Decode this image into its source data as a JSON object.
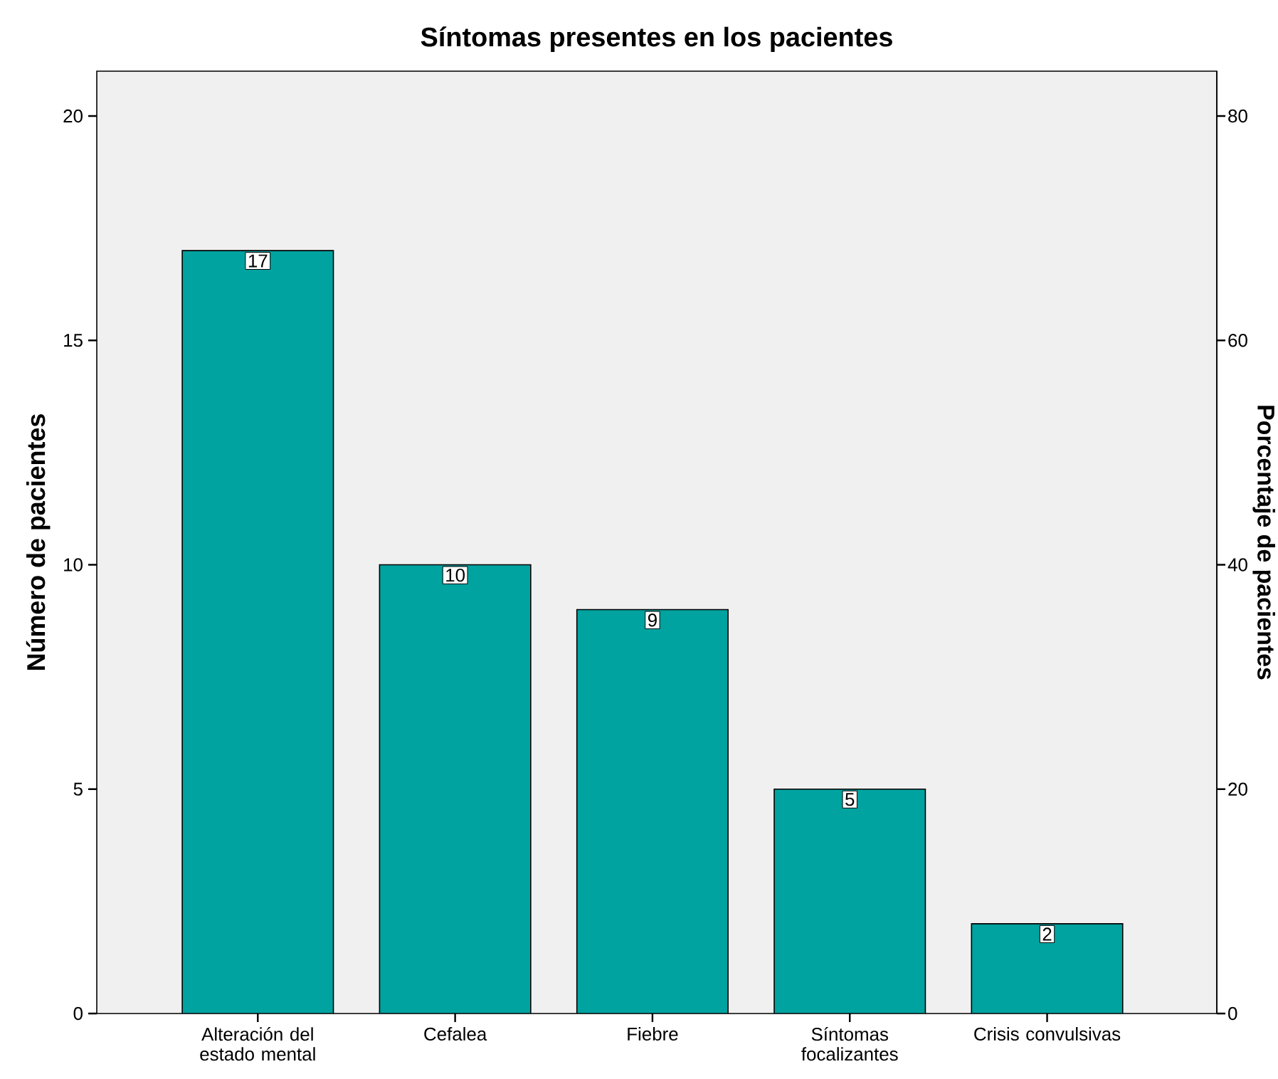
{
  "chart_data": {
    "type": "bar",
    "title": "Síntomas presentes en los pacientes",
    "categories": [
      "Alteración del estado mental",
      "Cefalea",
      "Fiebre",
      "Síntomas focalizantes",
      "Crisis convulsivas"
    ],
    "values": [
      17,
      10,
      9,
      5,
      2
    ],
    "color": "#00a3a0",
    "data_labels": true,
    "ylabel": "Número de pacientes",
    "ylim": [
      0,
      21
    ],
    "yticks": [
      0,
      5,
      10,
      15,
      20
    ],
    "y2label": "Porcentaje de pacientes",
    "y2lim": [
      0,
      84
    ],
    "y2ticks": [
      0,
      20,
      40,
      60,
      80
    ],
    "grid": false
  }
}
